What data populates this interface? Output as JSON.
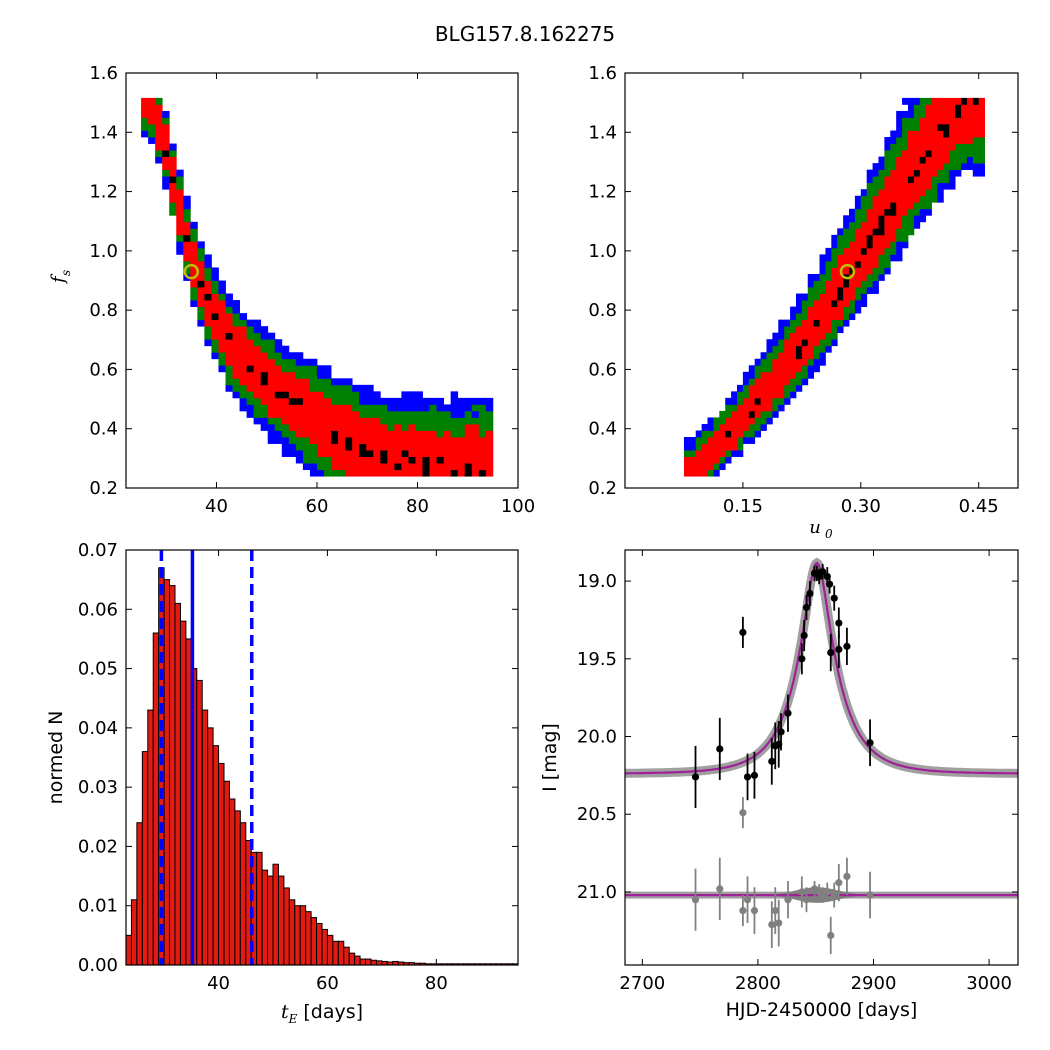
{
  "figure": {
    "title": "BLG157.8.162275"
  },
  "colors": {
    "c99": "#0000ff",
    "c95": "#008000",
    "c68": "#ff0000",
    "cBest": "#000000",
    "marker": "#bfbf00",
    "model": "#a0209a",
    "grey": "#808080",
    "hist": "#e11b12"
  },
  "chart_data": [
    {
      "id": "fs_vs_tE",
      "type": "heatmap",
      "title": "",
      "xlabel": "",
      "ylabel": "f_s",
      "xlim": [
        22,
        100
      ],
      "ylim": [
        0.2,
        1.6
      ],
      "xticks": [
        40,
        60,
        80,
        100
      ],
      "yticks": [
        0.2,
        0.4,
        0.6,
        0.8,
        1.0,
        1.2,
        1.4,
        1.6
      ],
      "legend": "none",
      "regions": {
        "outer_to_inner": [
          "99% (blue)",
          "95% (green)",
          "68% (red)",
          "best (black)"
        ]
      },
      "ridge": [
        [
          26.0,
          1.5
        ],
        [
          29,
          1.35
        ],
        [
          31,
          1.2
        ],
        [
          33,
          1.05
        ],
        [
          35,
          0.93
        ],
        [
          38,
          0.8
        ],
        [
          42,
          0.68
        ],
        [
          46,
          0.6
        ],
        [
          51,
          0.52
        ],
        [
          57,
          0.45
        ],
        [
          62,
          0.38
        ],
        [
          68,
          0.32
        ],
        [
          74,
          0.28
        ],
        [
          80,
          0.26
        ],
        [
          86,
          0.245
        ],
        [
          94,
          0.24
        ]
      ],
      "best_fit": {
        "x": 35,
        "y": 0.93
      }
    },
    {
      "id": "fs_vs_u0",
      "type": "heatmap",
      "title": "",
      "xlabel": "u_0",
      "ylabel": "",
      "xlim": [
        0.0,
        0.5
      ],
      "ylim": [
        0.2,
        1.6
      ],
      "xticks": [
        0.15,
        0.3,
        0.45
      ],
      "xticklabels": [
        "0.15",
        "0.30",
        "0.45"
      ],
      "yticks": [
        0.2,
        0.4,
        0.6,
        0.8,
        1.0,
        1.2,
        1.4,
        1.6
      ],
      "legend": "none",
      "ridge": [
        [
          0.08,
          0.24
        ],
        [
          0.12,
          0.34
        ],
        [
          0.16,
          0.46
        ],
        [
          0.2,
          0.59
        ],
        [
          0.24,
          0.73
        ],
        [
          0.28,
          0.9
        ],
        [
          0.31,
          1.02
        ],
        [
          0.34,
          1.15
        ],
        [
          0.37,
          1.28
        ],
        [
          0.4,
          1.4
        ],
        [
          0.43,
          1.5
        ]
      ],
      "best_fit": {
        "x": 0.283,
        "y": 0.93
      }
    },
    {
      "id": "tE_histogram",
      "type": "bar",
      "title": "",
      "xlabel": "t_E  [days]",
      "ylabel": "normed N",
      "xlim": [
        23,
        95
      ],
      "ylim": [
        0,
        0.07
      ],
      "xticks": [
        40,
        60,
        80
      ],
      "yticks": [
        0.0,
        0.01,
        0.02,
        0.03,
        0.04,
        0.05,
        0.06,
        0.07
      ],
      "yticklabels": [
        "0.00",
        "0.01",
        "0.02",
        "0.03",
        "0.04",
        "0.05",
        "0.06",
        "0.07"
      ],
      "bin_start": 23,
      "bin_width": 1,
      "values": [
        0.005,
        0.011,
        0.024,
        0.036,
        0.043,
        0.056,
        0.067,
        0.065,
        0.064,
        0.061,
        0.058,
        0.055,
        0.05,
        0.048,
        0.043,
        0.04,
        0.037,
        0.034,
        0.031,
        0.028,
        0.026,
        0.024,
        0.021,
        0.019,
        0.019,
        0.016,
        0.015,
        0.017,
        0.015,
        0.013,
        0.011,
        0.01,
        0.01,
        0.009,
        0.008,
        0.007,
        0.006,
        0.005,
        0.004,
        0.004,
        0.003,
        0.002,
        0.0015,
        0.001,
        0.001,
        0.0008,
        0.0007,
        0.0006,
        0.0005,
        0.0006,
        0.0005,
        0.0004,
        0.0004,
        0.0003,
        0.0003,
        0.0002,
        0.0002,
        0.0002,
        0.0002,
        0.0002,
        0.0002,
        0.0002,
        0.0002,
        0.0002,
        0.0002,
        0.0002,
        0.0002,
        0.0002,
        0.0002,
        0.0002,
        0.0002,
        0.0002
      ],
      "vlines": [
        {
          "x": 29.5,
          "style": "dashed"
        },
        {
          "x": 35.2,
          "style": "solid"
        },
        {
          "x": 46.1,
          "style": "dashed"
        }
      ]
    },
    {
      "id": "light_curve",
      "type": "scatter",
      "title": "",
      "xlabel": "HJD-2450000 [days]",
      "ylabel": "I [mag]",
      "xlim": [
        2685,
        3025
      ],
      "ylim": [
        21.47,
        18.8
      ],
      "xticks": [
        2700,
        2800,
        2900,
        3000
      ],
      "yticks": [
        19.0,
        19.5,
        20.0,
        20.5,
        21.0
      ],
      "yticklabels": [
        "19.0",
        "19.5",
        "20.0",
        "20.5",
        "21.0"
      ],
      "model": {
        "t0": 2851,
        "tE": 35,
        "u0": 0.28,
        "fs": 0.93,
        "baseline": 20.24
      },
      "residual_baseline": 21.02,
      "data_points": [
        {
          "x": 2746,
          "y": 20.26,
          "err": 0.2
        },
        {
          "x": 2767,
          "y": 20.08,
          "err": 0.2
        },
        {
          "x": 2787,
          "y": 19.33,
          "err": 0.1
        },
        {
          "x": 2791,
          "y": 20.26,
          "err": 0.15
        },
        {
          "x": 2797,
          "y": 20.25,
          "err": 0.15
        },
        {
          "x": 2812,
          "y": 20.16,
          "err": 0.15
        },
        {
          "x": 2815,
          "y": 20.06,
          "err": 0.15
        },
        {
          "x": 2818,
          "y": 20.05,
          "err": 0.15
        },
        {
          "x": 2820,
          "y": 19.97,
          "err": 0.12
        },
        {
          "x": 2826,
          "y": 19.85,
          "err": 0.12
        },
        {
          "x": 2838,
          "y": 19.5,
          "err": 0.1
        },
        {
          "x": 2840,
          "y": 19.35,
          "err": 0.1
        },
        {
          "x": 2842,
          "y": 19.17,
          "err": 0.08
        },
        {
          "x": 2845,
          "y": 19.08,
          "err": 0.08
        },
        {
          "x": 2849,
          "y": 18.95,
          "err": 0.05
        },
        {
          "x": 2851,
          "y": 18.95,
          "err": 0.05
        },
        {
          "x": 2853,
          "y": 18.97,
          "err": 0.05
        },
        {
          "x": 2856,
          "y": 18.94,
          "err": 0.05
        },
        {
          "x": 2860,
          "y": 18.97,
          "err": 0.06
        },
        {
          "x": 2862,
          "y": 19.02,
          "err": 0.06
        },
        {
          "x": 2866,
          "y": 19.11,
          "err": 0.08
        },
        {
          "x": 2870,
          "y": 19.27,
          "err": 0.1
        },
        {
          "x": 2863,
          "y": 19.46,
          "err": 0.12
        },
        {
          "x": 2870,
          "y": 19.44,
          "err": 0.12
        },
        {
          "x": 2877,
          "y": 19.42,
          "err": 0.12
        },
        {
          "x": 2897,
          "y": 20.04,
          "err": 0.15
        }
      ],
      "outlier_points": [
        {
          "x": 2787,
          "y": 20.49,
          "err": 0.1
        }
      ],
      "residual_points": [
        {
          "x": 2746,
          "y": 21.05,
          "err": 0.2
        },
        {
          "x": 2767,
          "y": 20.98,
          "err": 0.2
        },
        {
          "x": 2787,
          "y": 21.12,
          "err": 0.1
        },
        {
          "x": 2791,
          "y": 21.05,
          "err": 0.15
        },
        {
          "x": 2797,
          "y": 21.12,
          "err": 0.15
        },
        {
          "x": 2812,
          "y": 21.21,
          "err": 0.15
        },
        {
          "x": 2815,
          "y": 21.12,
          "err": 0.15
        },
        {
          "x": 2818,
          "y": 21.2,
          "err": 0.15
        },
        {
          "x": 2826,
          "y": 21.05,
          "err": 0.12
        },
        {
          "x": 2838,
          "y": 21.0,
          "err": 0.1
        },
        {
          "x": 2842,
          "y": 21.05,
          "err": 0.08
        },
        {
          "x": 2849,
          "y": 20.98,
          "err": 0.05
        },
        {
          "x": 2853,
          "y": 21.0,
          "err": 0.05
        },
        {
          "x": 2856,
          "y": 21.02,
          "err": 0.05
        },
        {
          "x": 2860,
          "y": 21.0,
          "err": 0.06
        },
        {
          "x": 2863,
          "y": 21.28,
          "err": 0.12
        },
        {
          "x": 2866,
          "y": 21.02,
          "err": 0.08
        },
        {
          "x": 2870,
          "y": 20.94,
          "err": 0.12
        },
        {
          "x": 2877,
          "y": 20.9,
          "err": 0.12
        },
        {
          "x": 2897,
          "y": 21.02,
          "err": 0.15
        }
      ]
    }
  ]
}
